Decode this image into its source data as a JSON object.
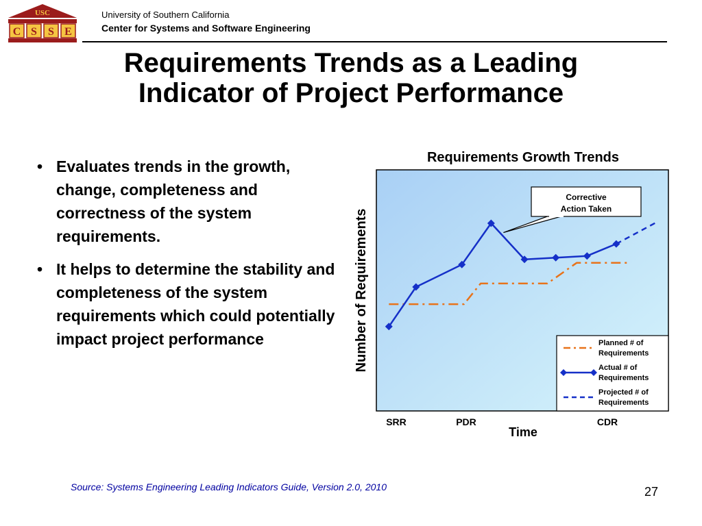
{
  "header": {
    "logo_text": "USC",
    "logo_letters": [
      "C",
      "S",
      "S",
      "E"
    ],
    "org_line1": "University of Southern California",
    "org_line2": "Center for Systems and Software Engineering"
  },
  "slide": {
    "title_line1": "Requirements Trends as a Leading",
    "title_line2": "Indicator of Project Performance",
    "bullets": [
      "Evaluates trends in the growth, change, completeness and correctness of the system requirements.",
      "It helps to determine the stability and completeness of the system requirements which could potentially impact project performance"
    ],
    "bullet_symbol": "•",
    "source": "Source: Systems Engineering Leading Indicators Guide, Version 2.0, 2010",
    "page_number": "27"
  },
  "chart_data": {
    "type": "line",
    "title": "Requirements Growth Trends",
    "xlabel": "Time",
    "ylabel": "Number of Requirements",
    "x_tick_labels": [
      "SRR",
      "PDR",
      "CDR"
    ],
    "xlim": [
      0,
      14
    ],
    "ylim": [
      0,
      14
    ],
    "grid": false,
    "legend_position": "bottom-right",
    "background_gradient": [
      "#a9d0f5",
      "#d6f4fb"
    ],
    "annotation": {
      "text_line1": "Corrective",
      "text_line2": "Action Taken",
      "points_to": [
        5.5,
        10.2
      ]
    },
    "series": [
      {
        "name": "Planned # of Requirements",
        "style": "dash-dot",
        "color": "#e8731a",
        "x": [
          0.6,
          4.2,
          5.0,
          8.2,
          9.6,
          12.2
        ],
        "y": [
          6.2,
          6.2,
          7.4,
          7.4,
          8.6,
          8.6
        ]
      },
      {
        "name": "Actual # of Requirements",
        "style": "solid-diamond",
        "color": "#1530c8",
        "x": [
          0.6,
          1.9,
          4.1,
          5.5,
          7.1,
          8.6,
          10.1,
          11.5
        ],
        "y": [
          4.9,
          7.2,
          8.5,
          10.9,
          8.8,
          8.9,
          9.0,
          9.7
        ]
      },
      {
        "name": "Projected # of Requirements",
        "style": "dashed",
        "color": "#1530c8",
        "x": [
          11.5,
          13.5
        ],
        "y": [
          9.7,
          11.0
        ]
      }
    ]
  }
}
